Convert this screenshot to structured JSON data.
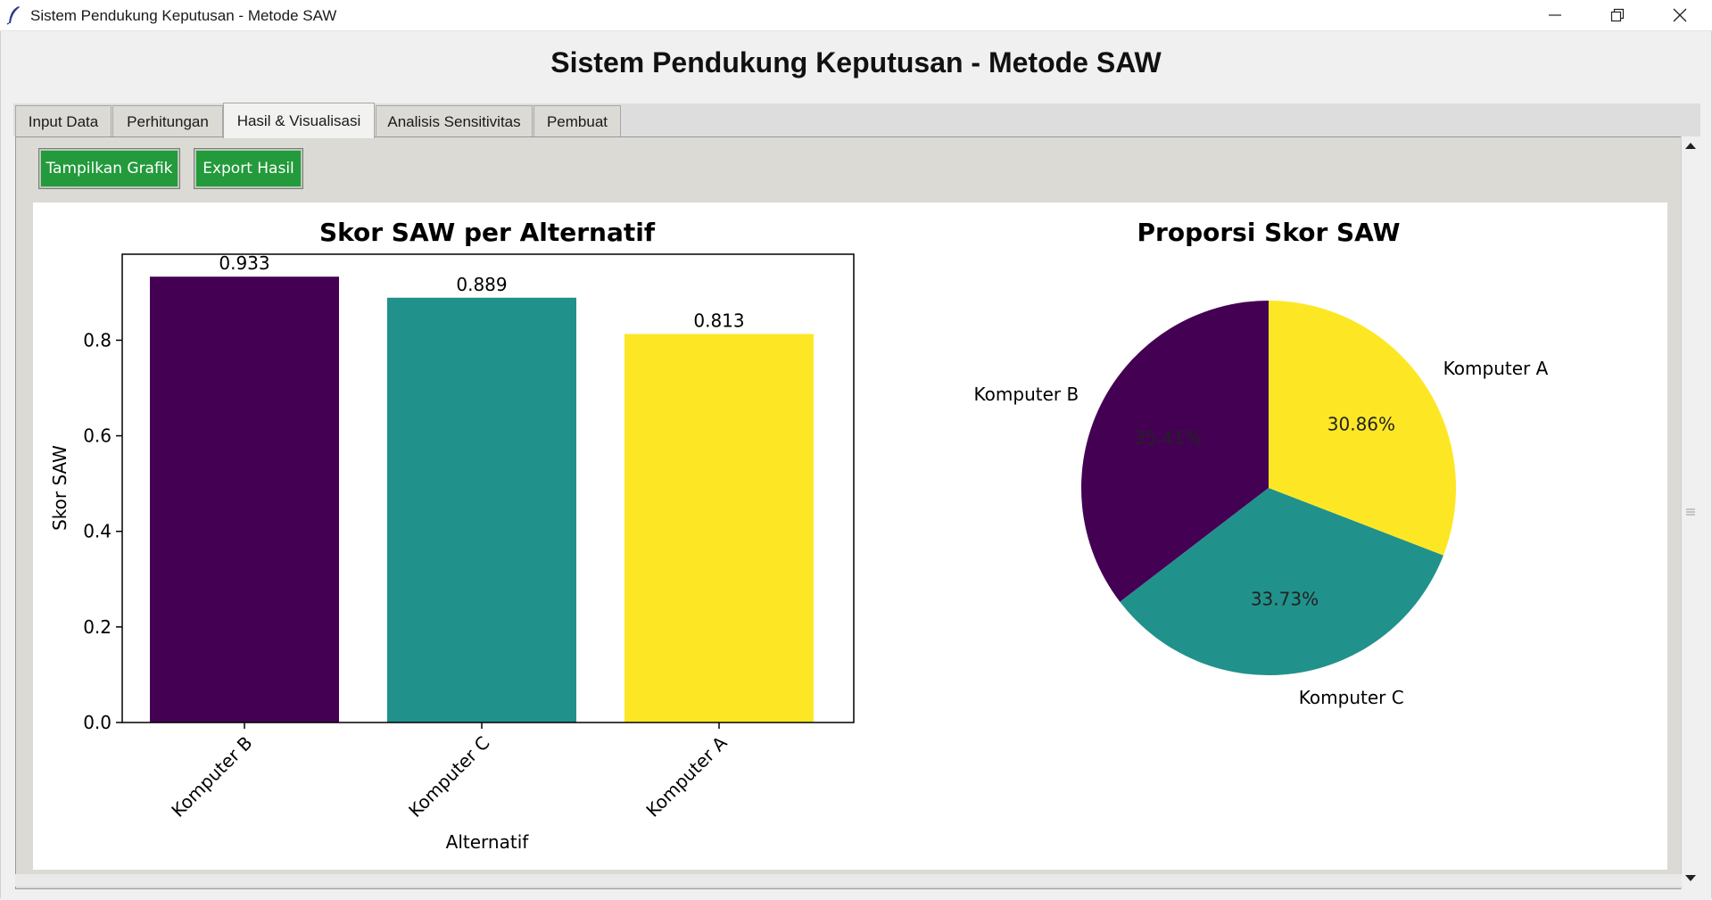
{
  "window": {
    "title": "Sistem Pendukung Keputusan - Metode SAW",
    "icons": [
      "feather-icon",
      "minimize-icon",
      "restore-icon",
      "close-icon"
    ]
  },
  "app": {
    "heading": "Sistem Pendukung Keputusan - Metode SAW"
  },
  "tabs": [
    {
      "label": "Input Data",
      "active": false
    },
    {
      "label": "Perhitungan",
      "active": false
    },
    {
      "label": "Hasil & Visualisasi",
      "active": true
    },
    {
      "label": "Analisis Sensitivitas",
      "active": false
    },
    {
      "label": "Pembuat",
      "active": false
    }
  ],
  "toolbar": {
    "show_chart_label": "Tampilkan Grafik",
    "export_label": "Export Hasil",
    "button_color": "#239a3b"
  },
  "chart_data": [
    {
      "type": "bar",
      "title": "Skor SAW per Alternatif",
      "xlabel": "Alternatif",
      "ylabel": "Skor SAW",
      "categories": [
        "Komputer B",
        "Komputer C",
        "Komputer A"
      ],
      "values": [
        0.933,
        0.889,
        0.813
      ],
      "value_labels": [
        "0.933",
        "0.889",
        "0.813"
      ],
      "colors": [
        "#440154",
        "#21918c",
        "#fde725"
      ],
      "ylim": [
        0,
        0.98
      ],
      "yticks": [
        0.0,
        0.2,
        0.4,
        0.6,
        0.8
      ],
      "ytick_labels": [
        "0.0",
        "0.2",
        "0.4",
        "0.6",
        "0.8"
      ],
      "grid": false
    },
    {
      "type": "pie",
      "title": "Proporsi Skor SAW",
      "labels": [
        "Komputer B",
        "Komputer C",
        "Komputer A"
      ],
      "percentages": [
        35.41,
        33.73,
        30.86
      ],
      "pct_labels": [
        "35.41%",
        "33.73%",
        "30.86%"
      ],
      "colors": [
        "#440154",
        "#21918c",
        "#fde725"
      ],
      "start_angle_deg": 90,
      "direction": "counterclockwise"
    }
  ]
}
